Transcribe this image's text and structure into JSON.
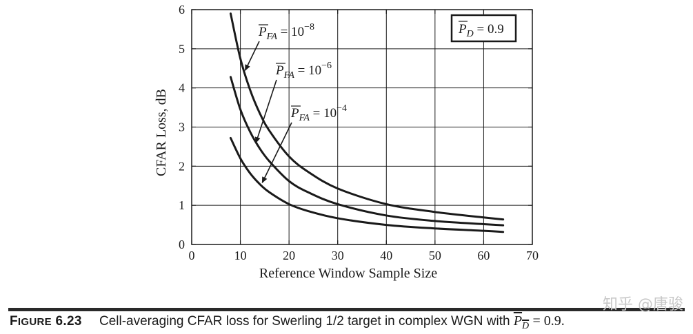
{
  "chart_data": {
    "type": "line",
    "title": "",
    "xlabel": "Reference Window Sample Size",
    "ylabel": "CFAR Loss, dB",
    "xlim": [
      0,
      70
    ],
    "ylim": [
      0,
      6
    ],
    "xticks": [
      0,
      10,
      20,
      30,
      40,
      50,
      60,
      70
    ],
    "yticks": [
      0,
      1,
      2,
      3,
      4,
      5,
      6
    ],
    "grid": true,
    "series": [
      {
        "name": "P̄FA = 10−8",
        "label_base": "10",
        "label_exp": "−8",
        "x": [
          8,
          10,
          12,
          14,
          16,
          20,
          24,
          30,
          40,
          50,
          60,
          64
        ],
        "y": [
          5.9,
          4.75,
          3.95,
          3.35,
          2.9,
          2.25,
          1.85,
          1.43,
          1.03,
          0.83,
          0.69,
          0.64
        ]
      },
      {
        "name": "P̄FA = 10−6",
        "label_base": "10",
        "label_exp": "−6",
        "x": [
          8,
          10,
          12,
          14,
          16,
          20,
          24,
          30,
          40,
          50,
          60,
          64
        ],
        "y": [
          4.28,
          3.45,
          2.88,
          2.45,
          2.12,
          1.62,
          1.33,
          1.03,
          0.74,
          0.6,
          0.52,
          0.49
        ]
      },
      {
        "name": "P̄FA = 10−4",
        "label_base": "10",
        "label_exp": "−4",
        "x": [
          8,
          10,
          12,
          14,
          16,
          20,
          24,
          30,
          40,
          50,
          60,
          64
        ],
        "y": [
          2.72,
          2.2,
          1.82,
          1.54,
          1.33,
          1.03,
          0.85,
          0.67,
          0.5,
          0.41,
          0.35,
          0.32
        ]
      }
    ],
    "annotation_pd": {
      "prefix": "P",
      "sub": "D",
      "value": "= 0.9"
    }
  },
  "caption": {
    "figure_label_first": "F",
    "figure_label_rest": "IGURE",
    "figure_number": "6.23",
    "text": "Cell-averaging CFAR loss for Swerling 1/2 target in complex WGN with",
    "pd_symbol": "P",
    "pd_sub": "D",
    "pd_rest": "= 0.9."
  },
  "watermark": "知乎 @唐骏"
}
